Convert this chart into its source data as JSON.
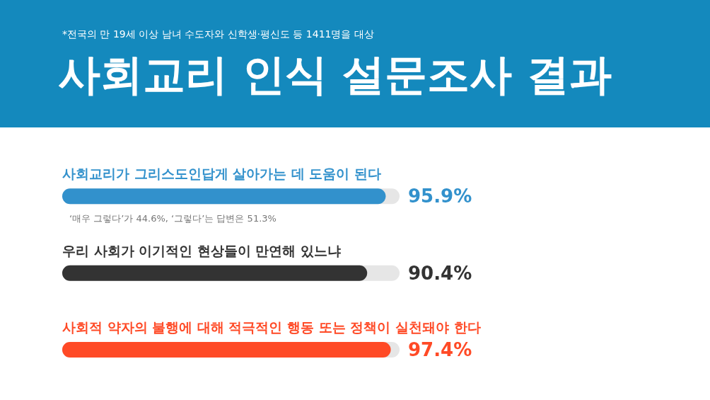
{
  "chart_data": {
    "type": "bar",
    "orientation": "horizontal",
    "title": "사회교리 인식 설문조사 결과",
    "subtitle": "*전국의 만 19세 이상 남녀 수도자와 신학생·평신도 등 1411명을 대상",
    "categories": [
      "사회교리가 그리스도인답게 살아가는 데 도움이 된다",
      "우리 사회가 이기적인 현상들이 만연해 있느냐",
      "사회적 약자의 불행에 대해 적극적인 행동 또는 정책이 실천돼야 한다"
    ],
    "values": [
      95.9,
      90.4,
      97.4
    ],
    "colors": [
      "#3291cc",
      "#333333",
      "#ff4a26"
    ],
    "value_labels": [
      "95.9%",
      "90.4%",
      "97.4%"
    ],
    "xlim": [
      0,
      100
    ],
    "annotations": [
      "‘매우 그렇다’가 44.6%, ‘그렇다’는 답변은 51.3%"
    ]
  }
}
